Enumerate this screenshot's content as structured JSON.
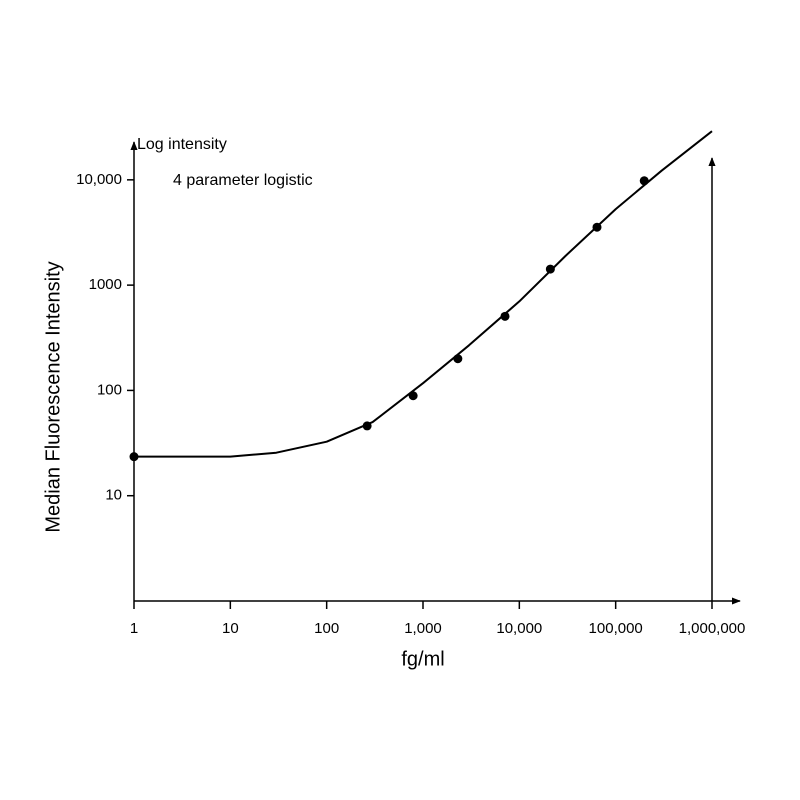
{
  "chart_data": {
    "type": "scatter",
    "annotations": [
      "Log intensity",
      "4 parameter logistic"
    ],
    "x_label": "fg/ml",
    "y_label": "Median Fluorescence Intensity",
    "x_log": true,
    "y_log": true,
    "xlim": [
      1,
      1000000
    ],
    "ylim": [
      1,
      30000
    ],
    "xticks": [
      1,
      10,
      100,
      {
        "value": 1000,
        "label": "1,000"
      },
      {
        "value": 10000,
        "label": "10,000"
      },
      {
        "value": 100000,
        "label": "100,000"
      },
      {
        "value": 1000000,
        "label": "1,000,000"
      }
    ],
    "yticks": [
      10,
      100,
      1000,
      {
        "value": 10000,
        "label": "10,000"
      }
    ],
    "color": "#000000",
    "series": [
      {
        "kind": "points",
        "x": [
          1,
          263,
          790,
          2300,
          7100,
          21000,
          64000,
          198000
        ],
        "values": [
          23.5,
          46,
          89,
          200,
          505,
          1420,
          3550,
          9800
        ]
      },
      {
        "kind": "curve",
        "x": [
          1,
          10,
          30,
          100,
          300,
          1000,
          3000,
          10000,
          30000,
          100000,
          300000,
          1000000
        ],
        "values": [
          23.5,
          23.5,
          25.6,
          32.6,
          50,
          117,
          268,
          700,
          1885,
          5270,
          12200,
          29000
        ]
      }
    ]
  }
}
